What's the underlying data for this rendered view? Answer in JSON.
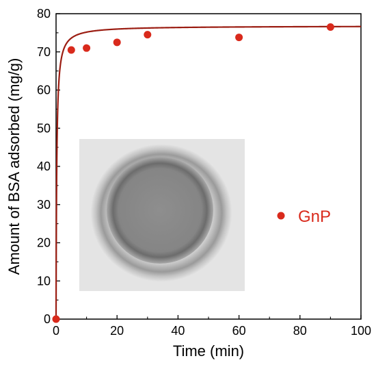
{
  "chart_data": {
    "type": "scatter",
    "xlabel": "Time (min)",
    "ylabel": "Amount of BSA adsorbed (mg/g)",
    "xlim": [
      0,
      100
    ],
    "ylim": [
      0,
      80
    ],
    "x_ticks": [
      "0",
      "20",
      "40",
      "60",
      "80",
      "100"
    ],
    "y_ticks": [
      "0",
      "10",
      "20",
      "30",
      "40",
      "50",
      "60",
      "70",
      "80"
    ],
    "grid": false,
    "legend_position": "right",
    "series": [
      {
        "name": "GnP",
        "color": "#d92a1c",
        "points": [
          {
            "x": 0,
            "y": 0
          },
          {
            "x": 5,
            "y": 70.5
          },
          {
            "x": 10,
            "y": 71
          },
          {
            "x": 20,
            "y": 72.5
          },
          {
            "x": 30,
            "y": 74.5
          },
          {
            "x": 60,
            "y": 73.8
          },
          {
            "x": 90,
            "y": 76.5
          }
        ]
      }
    ],
    "fit_curve": {
      "color": "#9b1d12",
      "type": "pseudo-second-order",
      "qe": 76.8,
      "k": 0.06
    },
    "inset_image": "photo of circular grey sample disc"
  }
}
